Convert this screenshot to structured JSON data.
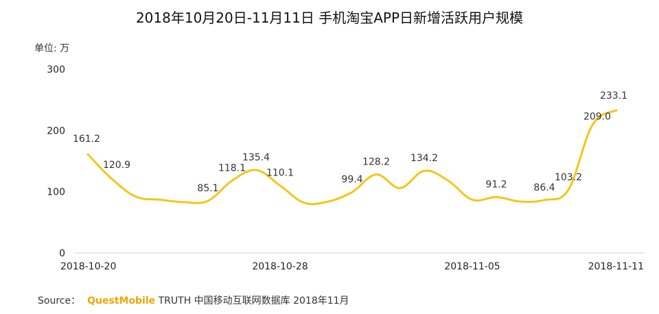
{
  "chart_data": {
    "type": "line",
    "title": "2018年10月20日-11月11日 手机淘宝APP日新增活跃用户规模",
    "unit_label": "单位: 万",
    "ylim": [
      0,
      300
    ],
    "yticks": [
      0,
      100,
      200,
      300
    ],
    "xtick_labels": [
      "2018-10-20",
      "2018-10-28",
      "2018-11-05",
      "2018-11-11"
    ],
    "grid": false,
    "line_color": "#f5c518",
    "x": [
      "2018-10-20",
      "2018-10-21",
      "2018-10-22",
      "2018-10-23",
      "2018-10-24",
      "2018-10-25",
      "2018-10-26",
      "2018-10-27",
      "2018-10-28",
      "2018-10-29",
      "2018-10-30",
      "2018-10-31",
      "2018-11-01",
      "2018-11-02",
      "2018-11-03",
      "2018-11-04",
      "2018-11-05",
      "2018-11-06",
      "2018-11-07",
      "2018-11-08",
      "2018-11-09",
      "2018-11-10",
      "2018-11-11"
    ],
    "values": [
      161.2,
      120.9,
      92,
      87,
      83,
      85.1,
      118.1,
      135.4,
      110.1,
      82,
      84,
      99.4,
      128.2,
      106,
      134.2,
      118,
      87,
      91.2,
      84,
      86.4,
      103.2,
      209.0,
      233.1
    ],
    "data_labels": [
      {
        "index": 0,
        "text": "161.2"
      },
      {
        "index": 1,
        "text": "120.9"
      },
      {
        "index": 5,
        "text": "85.1"
      },
      {
        "index": 6,
        "text": "118.1"
      },
      {
        "index": 7,
        "text": "135.4"
      },
      {
        "index": 8,
        "text": "110.1"
      },
      {
        "index": 11,
        "text": "99.4"
      },
      {
        "index": 12,
        "text": "128.2"
      },
      {
        "index": 14,
        "text": "134.2"
      },
      {
        "index": 17,
        "text": "91.2"
      },
      {
        "index": 19,
        "text": "86.4"
      },
      {
        "index": 20,
        "text": "103.2"
      },
      {
        "index": 21,
        "text": "209.0"
      },
      {
        "index": 22,
        "text": "233.1"
      }
    ]
  },
  "source": {
    "prefix": "Source：",
    "brand": "QuestMobile",
    "text": "TRUTH 中国移动互联网数据库 2018年11月",
    "brand_color": "#f0a500"
  }
}
